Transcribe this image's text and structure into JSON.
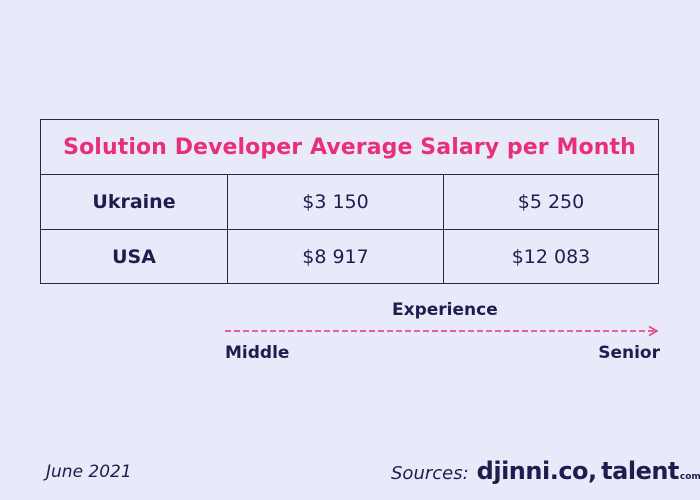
{
  "table": {
    "title": "Solution Developer Average Salary per Month",
    "rows": [
      {
        "country": "Ukraine",
        "middle": "$3 150",
        "senior": "$5 250"
      },
      {
        "country": "USA",
        "middle": "$8 917",
        "senior": "$12 083"
      }
    ]
  },
  "experience_axis": {
    "label": "Experience",
    "start_label": "Middle",
    "end_label": "Senior",
    "arrow_color": "#e8307a"
  },
  "footer": {
    "date": "June 2021",
    "sources_label": "Sources:",
    "logo_djinni": "djinni.co",
    "logo_comma": ",",
    "logo_talent": "talent",
    "logo_talent_suffix": "com"
  },
  "colors": {
    "background": "#e9eaf9",
    "text_dark": "#1f1d4e",
    "accent_pink": "#e8307a"
  }
}
